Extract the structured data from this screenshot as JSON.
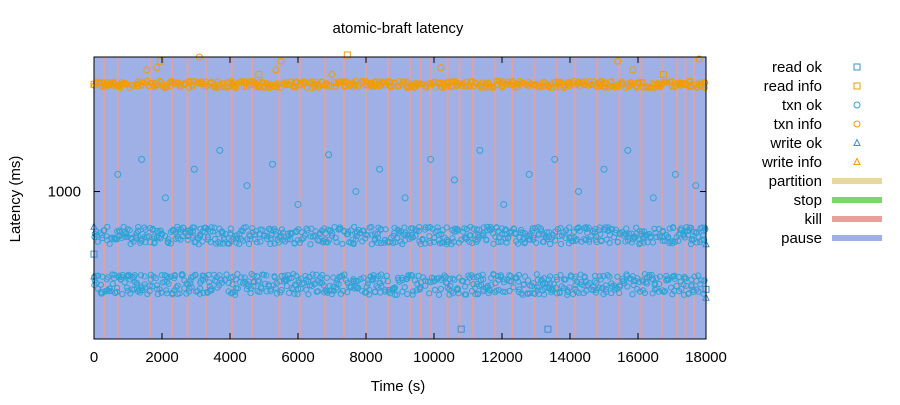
{
  "chart_data": {
    "type": "scatter",
    "title": "atomic-braft latency",
    "xlabel": "Time (s)",
    "ylabel": "Latency (ms)",
    "xlim": [
      0,
      18000
    ],
    "y_scale": "log",
    "ylim": [
      300,
      3000
    ],
    "x_ticks": [
      0,
      2000,
      4000,
      6000,
      8000,
      10000,
      12000,
      14000,
      16000,
      18000
    ],
    "y_ticks": [
      1000
    ],
    "grid": false,
    "legend_position": "right, outside plot",
    "background_band": {
      "name": "pause",
      "x_range": [
        0,
        18000
      ]
    },
    "kill_times": [
      300,
      700,
      1650,
      2300,
      2750,
      3300,
      4050,
      4650,
      5450,
      6050,
      6800,
      7350,
      8000,
      8650,
      9300,
      9600,
      9900,
      10400,
      10750,
      11150,
      11800,
      12300,
      12950,
      13600,
      14150,
      14800,
      15450,
      16100,
      16700,
      17150,
      17400,
      17650
    ],
    "legend": [
      {
        "label": "read ok",
        "marker": "square",
        "color": "#3c8fd4",
        "filled": false
      },
      {
        "label": "read info",
        "marker": "square",
        "color": "#f29c00",
        "filled": false
      },
      {
        "label": "txn ok",
        "marker": "circle",
        "color": "#2fa3d6",
        "filled": false
      },
      {
        "label": "txn info",
        "marker": "circle",
        "color": "#f29c00",
        "filled": false
      },
      {
        "label": "write ok",
        "marker": "triangle",
        "color": "#3c8fd4",
        "filled": false
      },
      {
        "label": "write info",
        "marker": "triangle",
        "color": "#f29c00",
        "filled": false
      },
      {
        "label": "partition",
        "marker": "band",
        "color": "#e8d89a"
      },
      {
        "label": "stop",
        "marker": "band",
        "color": "#7ad86a"
      },
      {
        "label": "kill",
        "marker": "band",
        "color": "#e8a09a"
      },
      {
        "label": "pause",
        "marker": "band",
        "color": "#9fb0e6"
      }
    ],
    "series": [
      {
        "name": "read info",
        "marker": "square",
        "points": [
          {
            "x": 0,
            "y": 2400
          },
          {
            "x": 1950,
            "y": 2900
          },
          {
            "x": 4850,
            "y": 2600
          },
          {
            "x": 7450,
            "y": 3050
          },
          {
            "x": 16750,
            "y": 2600
          },
          {
            "x": 17800,
            "y": 2400
          }
        ]
      },
      {
        "name": "txn info",
        "marker": "circle",
        "band": {
          "y_center": 2400,
          "y_spread": 70,
          "step": 55
        },
        "points": [
          {
            "x": 1550,
            "y": 2700
          },
          {
            "x": 1850,
            "y": 2750
          },
          {
            "x": 3100,
            "y": 3000
          },
          {
            "x": 5350,
            "y": 2700
          },
          {
            "x": 5500,
            "y": 2900
          },
          {
            "x": 7000,
            "y": 2600
          },
          {
            "x": 10200,
            "y": 2750
          },
          {
            "x": 15400,
            "y": 2900
          },
          {
            "x": 15850,
            "y": 2700
          },
          {
            "x": 17800,
            "y": 2950
          }
        ]
      },
      {
        "name": "txn ok",
        "marker": "circle",
        "bands": [
          {
            "y_center": 700,
            "y_spread": 50,
            "step": 45
          },
          {
            "y_center": 470,
            "y_spread": 40,
            "step": 45
          }
        ],
        "points": [
          {
            "x": 700,
            "y": 1150
          },
          {
            "x": 1400,
            "y": 1300
          },
          {
            "x": 2100,
            "y": 950
          },
          {
            "x": 2950,
            "y": 1200
          },
          {
            "x": 3700,
            "y": 1400
          },
          {
            "x": 4500,
            "y": 1050
          },
          {
            "x": 5250,
            "y": 1250
          },
          {
            "x": 6000,
            "y": 900
          },
          {
            "x": 6900,
            "y": 1350
          },
          {
            "x": 7700,
            "y": 1000
          },
          {
            "x": 8400,
            "y": 1200
          },
          {
            "x": 9150,
            "y": 950
          },
          {
            "x": 9900,
            "y": 1300
          },
          {
            "x": 10600,
            "y": 1100
          },
          {
            "x": 11350,
            "y": 1400
          },
          {
            "x": 12050,
            "y": 900
          },
          {
            "x": 12800,
            "y": 1150
          },
          {
            "x": 13550,
            "y": 1300
          },
          {
            "x": 14250,
            "y": 1000
          },
          {
            "x": 15000,
            "y": 1200
          },
          {
            "x": 15700,
            "y": 1400
          },
          {
            "x": 16450,
            "y": 950
          },
          {
            "x": 17100,
            "y": 1150
          },
          {
            "x": 17700,
            "y": 1050
          }
        ]
      },
      {
        "name": "read ok",
        "marker": "square",
        "points": [
          {
            "x": 0,
            "y": 600
          },
          {
            "x": 10800,
            "y": 325
          },
          {
            "x": 13350,
            "y": 325
          },
          {
            "x": 18000,
            "y": 450
          }
        ]
      },
      {
        "name": "write ok",
        "marker": "triangle",
        "points": [
          {
            "x": 0,
            "y": 750
          },
          {
            "x": 0,
            "y": 500
          },
          {
            "x": 18000,
            "y": 650
          },
          {
            "x": 18000,
            "y": 420
          }
        ]
      }
    ]
  }
}
